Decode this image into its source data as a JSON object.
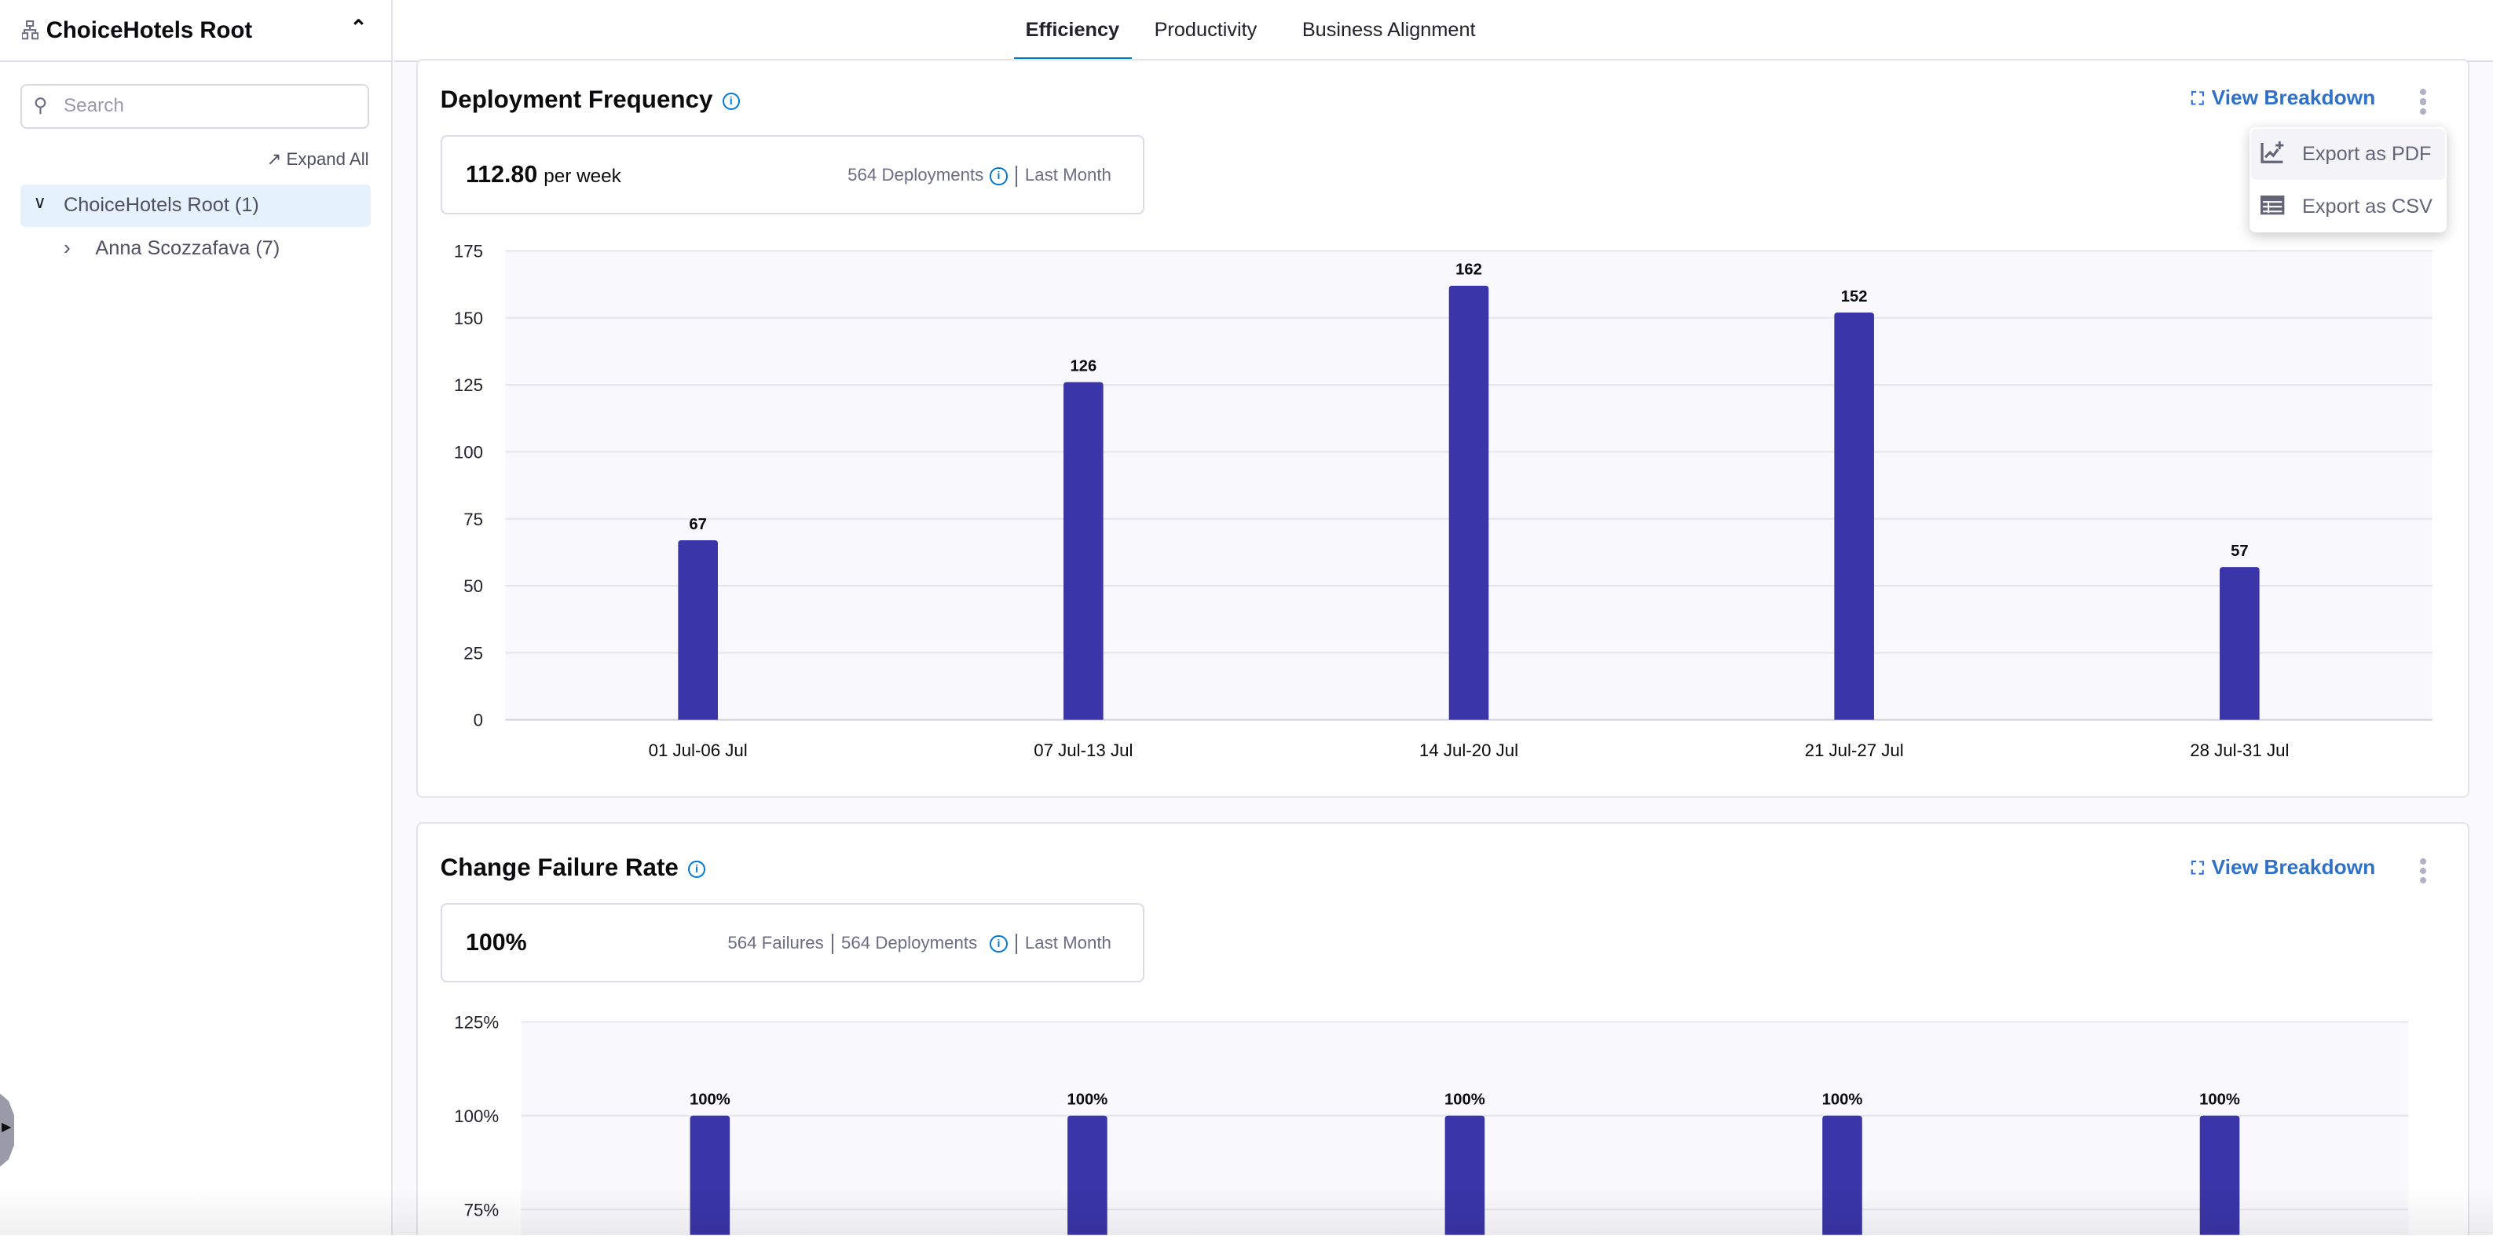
{
  "sidebar": {
    "title": "ChoiceHotels Root",
    "search_placeholder": "Search",
    "expand_all": "Expand All",
    "tree": [
      {
        "label": "ChoiceHotels Root (1)",
        "expanded": true,
        "selected": true
      },
      {
        "label": "Anna Scozzafava (7)",
        "expanded": false
      }
    ]
  },
  "tabs": [
    {
      "label": "Efficiency",
      "active": true
    },
    {
      "label": "Productivity"
    },
    {
      "label": "Business Alignment"
    }
  ],
  "colors": {
    "accent": "#0278d5",
    "bar": "#3a35a8",
    "link": "#2f71c9"
  },
  "cards": [
    {
      "title": "Deployment Frequency",
      "view_breakdown": "View Breakdown",
      "stat_value": "112.80",
      "stat_unit": "per week",
      "stat_meta": [
        "564 Deployments",
        "Last Month"
      ]
    },
    {
      "title": "Change Failure Rate",
      "view_breakdown": "View Breakdown",
      "stat_value": "100%",
      "stat_meta": [
        "564 Failures",
        "564 Deployments",
        "Last Month"
      ]
    }
  ],
  "menu": {
    "items": [
      {
        "label": "Export as PDF",
        "icon": "chart-add-icon"
      },
      {
        "label": "Export as CSV",
        "icon": "table-icon"
      }
    ]
  },
  "chart_data": [
    {
      "type": "bar",
      "categories": [
        "01 Jul-06 Jul",
        "07 Jul-13 Jul",
        "14 Jul-20 Jul",
        "21 Jul-27 Jul",
        "28 Jul-31 Jul"
      ],
      "values": [
        67,
        126,
        162,
        152,
        57
      ],
      "data_labels": [
        "67",
        "126",
        "162",
        "152",
        "57"
      ],
      "yticks": [
        "0",
        "25",
        "50",
        "75",
        "100",
        "125",
        "150",
        "175"
      ],
      "ylim": [
        0,
        175
      ],
      "grid": true
    },
    {
      "type": "bar",
      "categories": [
        "",
        "",
        "",
        "",
        ""
      ],
      "values": [
        100,
        100,
        100,
        100,
        100
      ],
      "data_labels": [
        "100%",
        "100%",
        "100%",
        "100%",
        "100%"
      ],
      "yticks": [
        "75%",
        "100%",
        "125%"
      ],
      "ylim": [
        0,
        125
      ],
      "grid": true
    }
  ]
}
